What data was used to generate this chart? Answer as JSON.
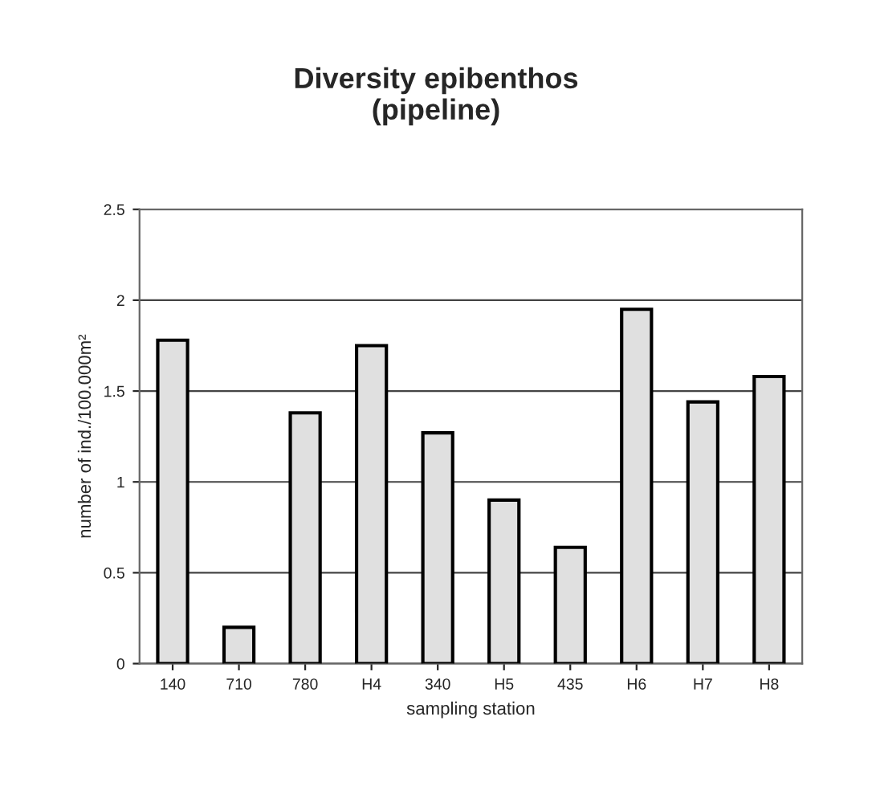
{
  "chart_data": {
    "type": "bar",
    "title": "Diversity epibenthos\n(pipeline)",
    "xlabel": "sampling station",
    "ylabel": "number of ind./100.000m²",
    "categories": [
      "140",
      "710",
      "780",
      "H4",
      "340",
      "H5",
      "435",
      "H6",
      "H7",
      "H8"
    ],
    "values": [
      1.78,
      0.2,
      1.38,
      1.75,
      1.27,
      0.9,
      0.64,
      1.95,
      1.44,
      1.58
    ],
    "color": "#e0e0e0",
    "ylim": [
      0,
      2.5
    ],
    "yticks": [
      0,
      0.5,
      1,
      1.5,
      2,
      2.5
    ],
    "grid": "y",
    "legend": false
  }
}
